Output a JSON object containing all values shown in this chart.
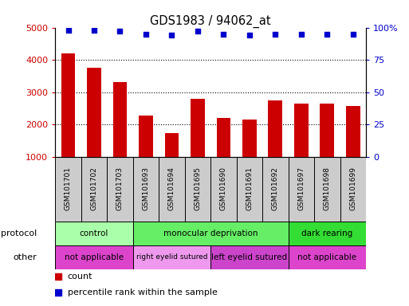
{
  "title": "GDS1983 / 94062_at",
  "samples": [
    "GSM101701",
    "GSM101702",
    "GSM101703",
    "GSM101693",
    "GSM101694",
    "GSM101695",
    "GSM101690",
    "GSM101691",
    "GSM101692",
    "GSM101697",
    "GSM101698",
    "GSM101699"
  ],
  "counts": [
    4200,
    3750,
    3300,
    2280,
    1720,
    2800,
    2200,
    2160,
    2750,
    2650,
    2640,
    2560
  ],
  "percentiles": [
    98,
    98,
    97,
    95,
    94,
    97,
    95,
    94,
    95,
    95,
    95,
    95
  ],
  "bar_color": "#cc0000",
  "dot_color": "#0000cc",
  "ylim_left": [
    1000,
    5000
  ],
  "yticks_left": [
    1000,
    2000,
    3000,
    4000,
    5000
  ],
  "ylim_right": [
    0,
    100
  ],
  "yticks_right": [
    0,
    25,
    50,
    75,
    100
  ],
  "protocol_groups": [
    {
      "label": "control",
      "start": 0,
      "end": 3,
      "color": "#aaffaa"
    },
    {
      "label": "monocular deprivation",
      "start": 3,
      "end": 9,
      "color": "#66ee66"
    },
    {
      "label": "dark rearing",
      "start": 9,
      "end": 12,
      "color": "#33dd33"
    }
  ],
  "other_groups": [
    {
      "label": "not applicable",
      "start": 0,
      "end": 3,
      "color": "#dd44cc"
    },
    {
      "label": "right eyelid sutured",
      "start": 3,
      "end": 6,
      "color": "#ee99ee"
    },
    {
      "label": "left eyelid sutured",
      "start": 6,
      "end": 9,
      "color": "#cc44cc"
    },
    {
      "label": "not applicable",
      "start": 9,
      "end": 12,
      "color": "#dd44cc"
    }
  ],
  "legend_count_color": "#cc0000",
  "legend_pct_color": "#0000cc",
  "label_protocol": "protocol",
  "label_other": "other",
  "bg_color": "#ffffff",
  "xlabel_bg": "#cccccc",
  "group_boundaries": [
    3,
    9
  ]
}
